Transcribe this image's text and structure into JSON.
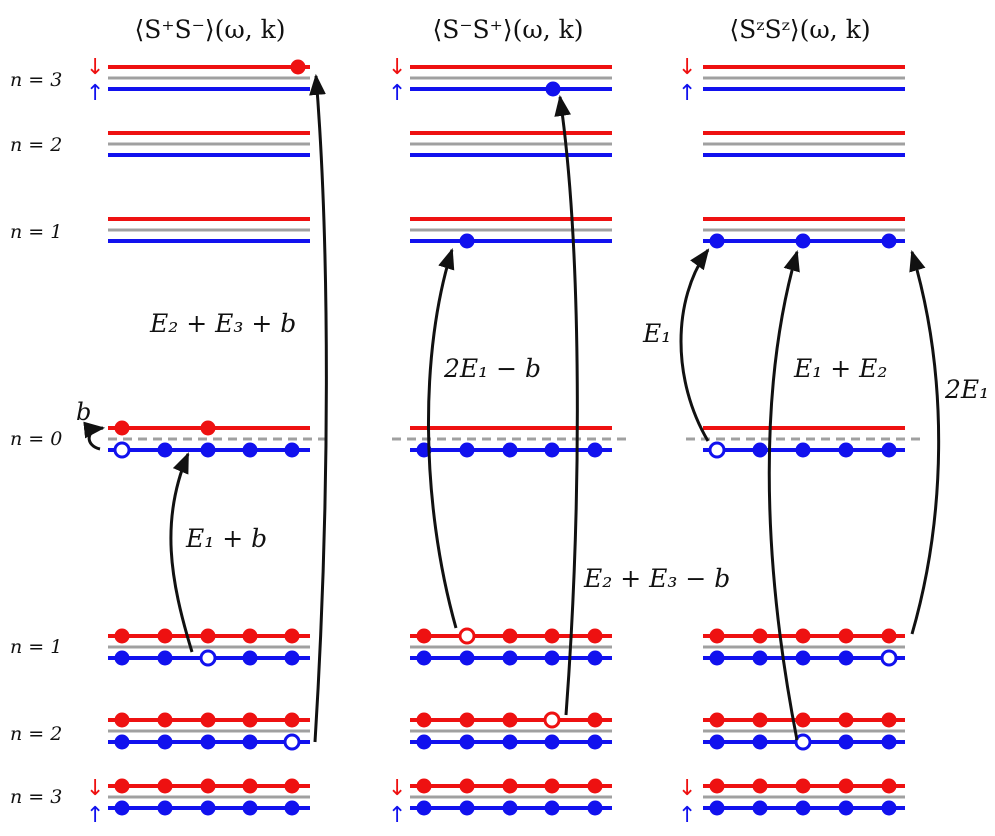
{
  "titles": [
    "⟨S⁺S⁻⟩(ω, k)",
    "⟨S⁻S⁺⟩(ω, k)",
    "⟨SᶻSᶻ⟩(ω, k)"
  ],
  "levels": {
    "n3": "n = 3",
    "n2": "n = 2",
    "n1": "n = 1",
    "n0": "n = 0"
  },
  "spin_down": "↓",
  "spin_up": "↑",
  "field_label": "b",
  "transitions": {
    "a_up": "E₂ + E₃ + b",
    "a_mid": "E₁ + b",
    "b_up": "2E₁ − b",
    "b_down": "E₂ + E₃ − b",
    "c_left": "E₁",
    "c_mid": "E₁ + E₂",
    "c_right": "2E₁"
  },
  "colors": {
    "red": "#ee1111",
    "blue": "#1111ee",
    "gray": "#a0a0a0",
    "arrow": "#111111"
  }
}
